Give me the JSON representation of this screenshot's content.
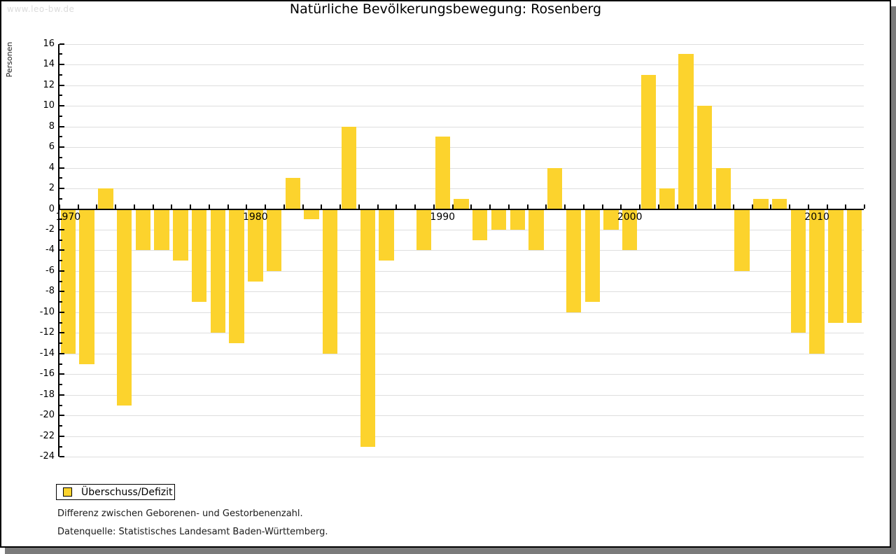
{
  "page": {
    "watermark": "www.leo-bw.de"
  },
  "chart_data": {
    "type": "bar",
    "title": "Natürliche Bevölkerungsbewegung: Rosenberg",
    "ylabel": "Personen",
    "xlabel": "",
    "series_name": "Überschuss/Defizit",
    "categories": [
      1970,
      1971,
      1972,
      1973,
      1974,
      1975,
      1976,
      1977,
      1978,
      1979,
      1980,
      1981,
      1982,
      1983,
      1984,
      1985,
      1986,
      1987,
      1988,
      1989,
      1990,
      1991,
      1992,
      1993,
      1994,
      1995,
      1996,
      1997,
      1998,
      1999,
      2000,
      2001,
      2002,
      2003,
      2004,
      2005,
      2006,
      2007,
      2008,
      2009,
      2010,
      2011,
      2012
    ],
    "values": [
      -14,
      -15,
      2,
      -19,
      -4,
      -4,
      -5,
      -9,
      -12,
      -13,
      -7,
      -6,
      3,
      -1,
      -14,
      8,
      -23,
      -5,
      0,
      -4,
      7,
      1,
      -3,
      -2,
      -2,
      -4,
      4,
      -10,
      -9,
      -2,
      -4,
      13,
      2,
      15,
      10,
      4,
      -6,
      1,
      1,
      -12,
      -14,
      -11,
      -11
    ],
    "ylim": [
      -24,
      16
    ],
    "ytick_step": 2,
    "xtick_labeled_years": [
      1970,
      1980,
      1990,
      2000,
      2010
    ],
    "grid": true,
    "legend_position": "bottom-left"
  },
  "legend": {
    "label": "Überschuss/Defizit"
  },
  "footer": {
    "line1": "Differenz zwischen Geborenen- und Gestorbenenzahl.",
    "line2": "Datenquelle: Statistisches Landesamt Baden-Württemberg."
  },
  "colors": {
    "bar": "#FCD32D",
    "gridline": "#DEDEDE",
    "axis": "#000000",
    "watermark": "#DCDCDC",
    "frame_shadow": "#7B7B7B",
    "background": "#FFFFFF"
  }
}
